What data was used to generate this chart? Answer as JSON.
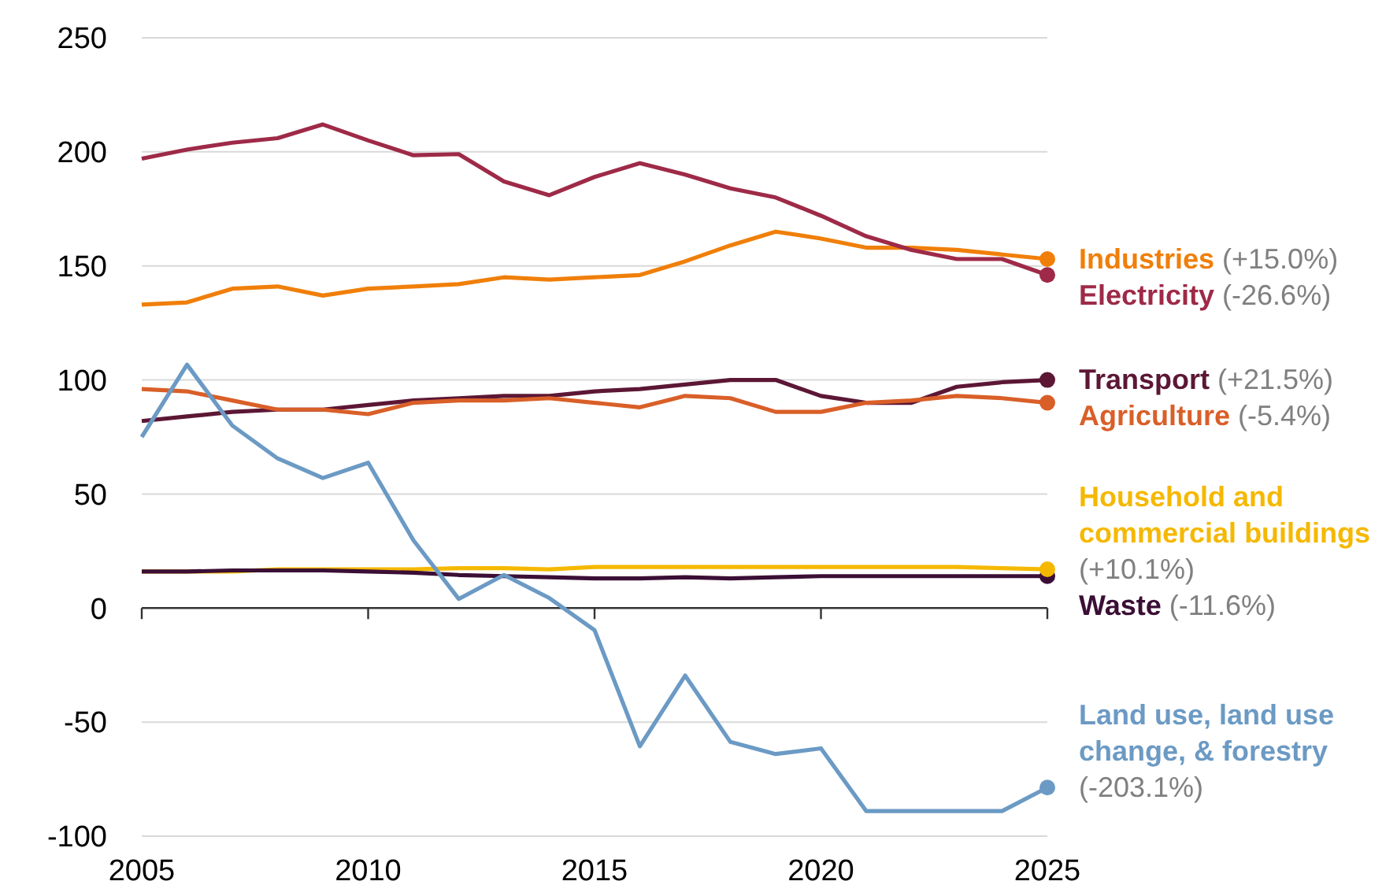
{
  "chart_data": {
    "type": "line",
    "x": [
      2005,
      2006,
      2007,
      2008,
      2009,
      2010,
      2011,
      2012,
      2013,
      2014,
      2015,
      2016,
      2017,
      2018,
      2019,
      2020,
      2021,
      2022,
      2023,
      2024,
      2025
    ],
    "xlim": [
      2005,
      2025
    ],
    "xticks": [
      2005,
      2010,
      2015,
      2020,
      2025
    ],
    "ylim": [
      -100,
      250
    ],
    "yticks": [
      -100,
      -50,
      0,
      50,
      100,
      150,
      200,
      250
    ],
    "grid": "y",
    "marker": "none",
    "line_style": "solid",
    "series": [
      {
        "name": "Industries",
        "color": "#f07f09",
        "values": [
          133,
          134,
          140,
          141,
          137,
          140,
          141,
          142,
          145,
          144,
          145,
          146,
          152,
          159,
          165,
          162,
          158,
          158,
          157,
          155,
          153
        ]
      },
      {
        "name": "Electricity",
        "color": "#9e2a48",
        "values": [
          197,
          201,
          204,
          206,
          212,
          205,
          198.5,
          199,
          187,
          181,
          189,
          195,
          190,
          184,
          180,
          172,
          163,
          157,
          153,
          153,
          146
        ]
      },
      {
        "name": "Transport",
        "color": "#5c1735",
        "values": [
          82,
          84,
          86,
          87,
          87,
          89,
          91,
          92,
          93,
          93,
          95,
          96,
          98,
          100,
          100,
          93,
          90,
          90,
          97,
          99,
          100
        ]
      },
      {
        "name": "Agriculture",
        "color": "#d95f28",
        "values": [
          96,
          95,
          91,
          87,
          87,
          85,
          90,
          91,
          91,
          92,
          90,
          88,
          93,
          92,
          86,
          86,
          90,
          91,
          93,
          92,
          90
        ]
      },
      {
        "name": "Household and commercial buildings",
        "color": "#f5b800",
        "values": [
          16,
          16,
          16,
          17,
          17,
          17,
          17,
          17.5,
          17.5,
          17,
          18,
          18,
          18,
          18,
          18,
          18,
          18,
          18,
          18,
          17.5,
          17
        ]
      },
      {
        "name": "Waste",
        "color": "#3b0f35",
        "values": [
          16,
          16,
          16.5,
          16.5,
          16.5,
          16,
          15.5,
          14.5,
          14,
          13.5,
          13,
          13,
          13.5,
          13,
          13.5,
          14,
          14,
          14,
          14,
          14,
          14
        ]
      },
      {
        "name": "Land use, land use change, & forestry",
        "color": "#6b9ac4",
        "values": [
          75,
          106.7,
          80,
          65.6,
          57,
          63.7,
          29.7,
          4,
          14.5,
          4.4,
          -9.7,
          -60.6,
          -29.6,
          -58.7,
          -64,
          -61.5,
          -89,
          -89,
          -89,
          -89,
          -78.7
        ]
      }
    ],
    "annotations": [
      "(+15.0%)",
      "(-26.6%)",
      "(+21.5%)",
      "(-5.4%)",
      "(+10.1%)",
      "(-11.6%)",
      "(-203.1%)"
    ]
  }
}
